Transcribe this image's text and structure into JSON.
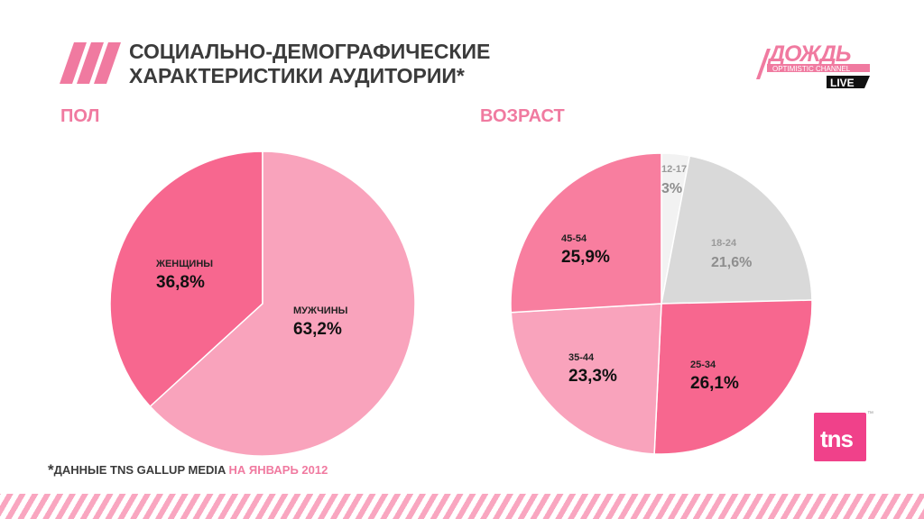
{
  "header": {
    "title_line1": "СОЦИАЛЬНО-ДЕМОГРАФИЧЕСКИЕ",
    "title_line2": "ХАРАКТЕРИСТИКИ АУДИТОРИИ*"
  },
  "logo": {
    "name": "ДОЖДЬ",
    "tagline": "OPTIMISTIC CHANNEL",
    "badge": "LIVE"
  },
  "sections": {
    "gender": "ПОЛ",
    "age": "ВОЗРАСТ"
  },
  "chart_data": [
    {
      "type": "pie",
      "title": "ПОЛ",
      "slices": [
        {
          "label": "ЖЕНЩИНЫ",
          "value": 36.8,
          "display": "36,8%",
          "color": "#f7678f"
        },
        {
          "label": "МУЖЧИНЫ",
          "value": 63.2,
          "display": "63,2%",
          "color": "#f9a3bc"
        }
      ]
    },
    {
      "type": "pie",
      "title": "ВОЗРАСТ",
      "slices": [
        {
          "label": "12-17",
          "value": 3.0,
          "display": "3%",
          "color": "#f2f2f2"
        },
        {
          "label": "18-24",
          "value": 21.6,
          "display": "21,6%",
          "color": "#d9d9d9"
        },
        {
          "label": "25-34",
          "value": 26.1,
          "display": "26,1%",
          "color": "#f7678f"
        },
        {
          "label": "35-44",
          "value": 23.3,
          "display": "23,3%",
          "color": "#f9a3bc"
        },
        {
          "label": "45-54",
          "value": 25.9,
          "display": "25,9%",
          "color": "#f87e9f"
        }
      ]
    }
  ],
  "footnote": {
    "star": "*",
    "text": "ДАННЫЕ TNS GALLUP MEDIA",
    "accent": "НА ЯНВАРЬ 2012"
  },
  "tns_logo": {
    "text": "tns",
    "mark": "™"
  },
  "colors": {
    "accent": "#f07aa0",
    "brand_pink": "#f0418a",
    "title": "#3b3b3b"
  }
}
